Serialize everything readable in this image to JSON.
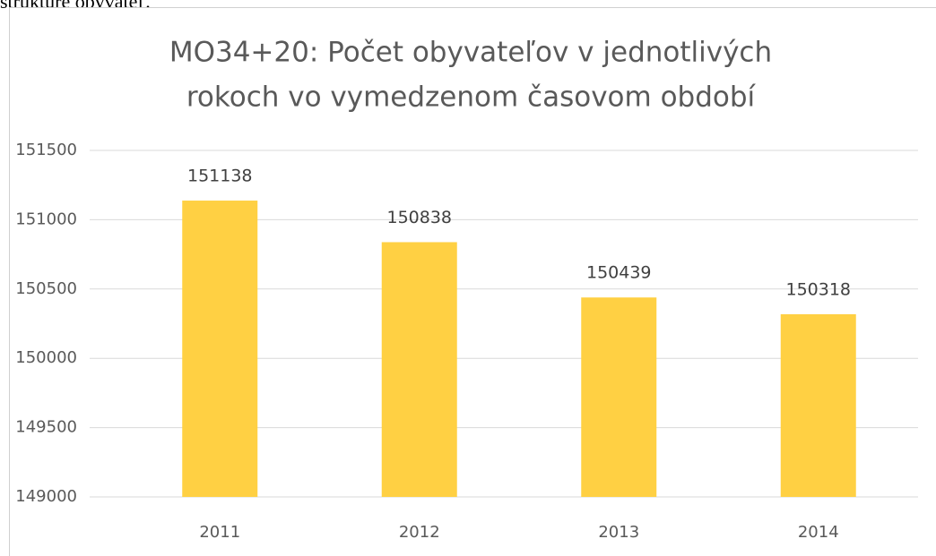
{
  "document_text": "štruktúre obyvateľ.",
  "chart_data": {
    "type": "bar",
    "title_lines": [
      "MO34+20: Počet obyvateľov v jednotlivých",
      "rokoch vo vymedzenom  časovom období"
    ],
    "categories": [
      "2011",
      "2012",
      "2013",
      "2014"
    ],
    "values": [
      151138,
      150838,
      150439,
      150318
    ],
    "color": "#ffd043",
    "ylim": [
      149000,
      151500
    ],
    "yticks": [
      149000,
      149500,
      150000,
      150500,
      151000,
      151500
    ],
    "grid": true
  }
}
